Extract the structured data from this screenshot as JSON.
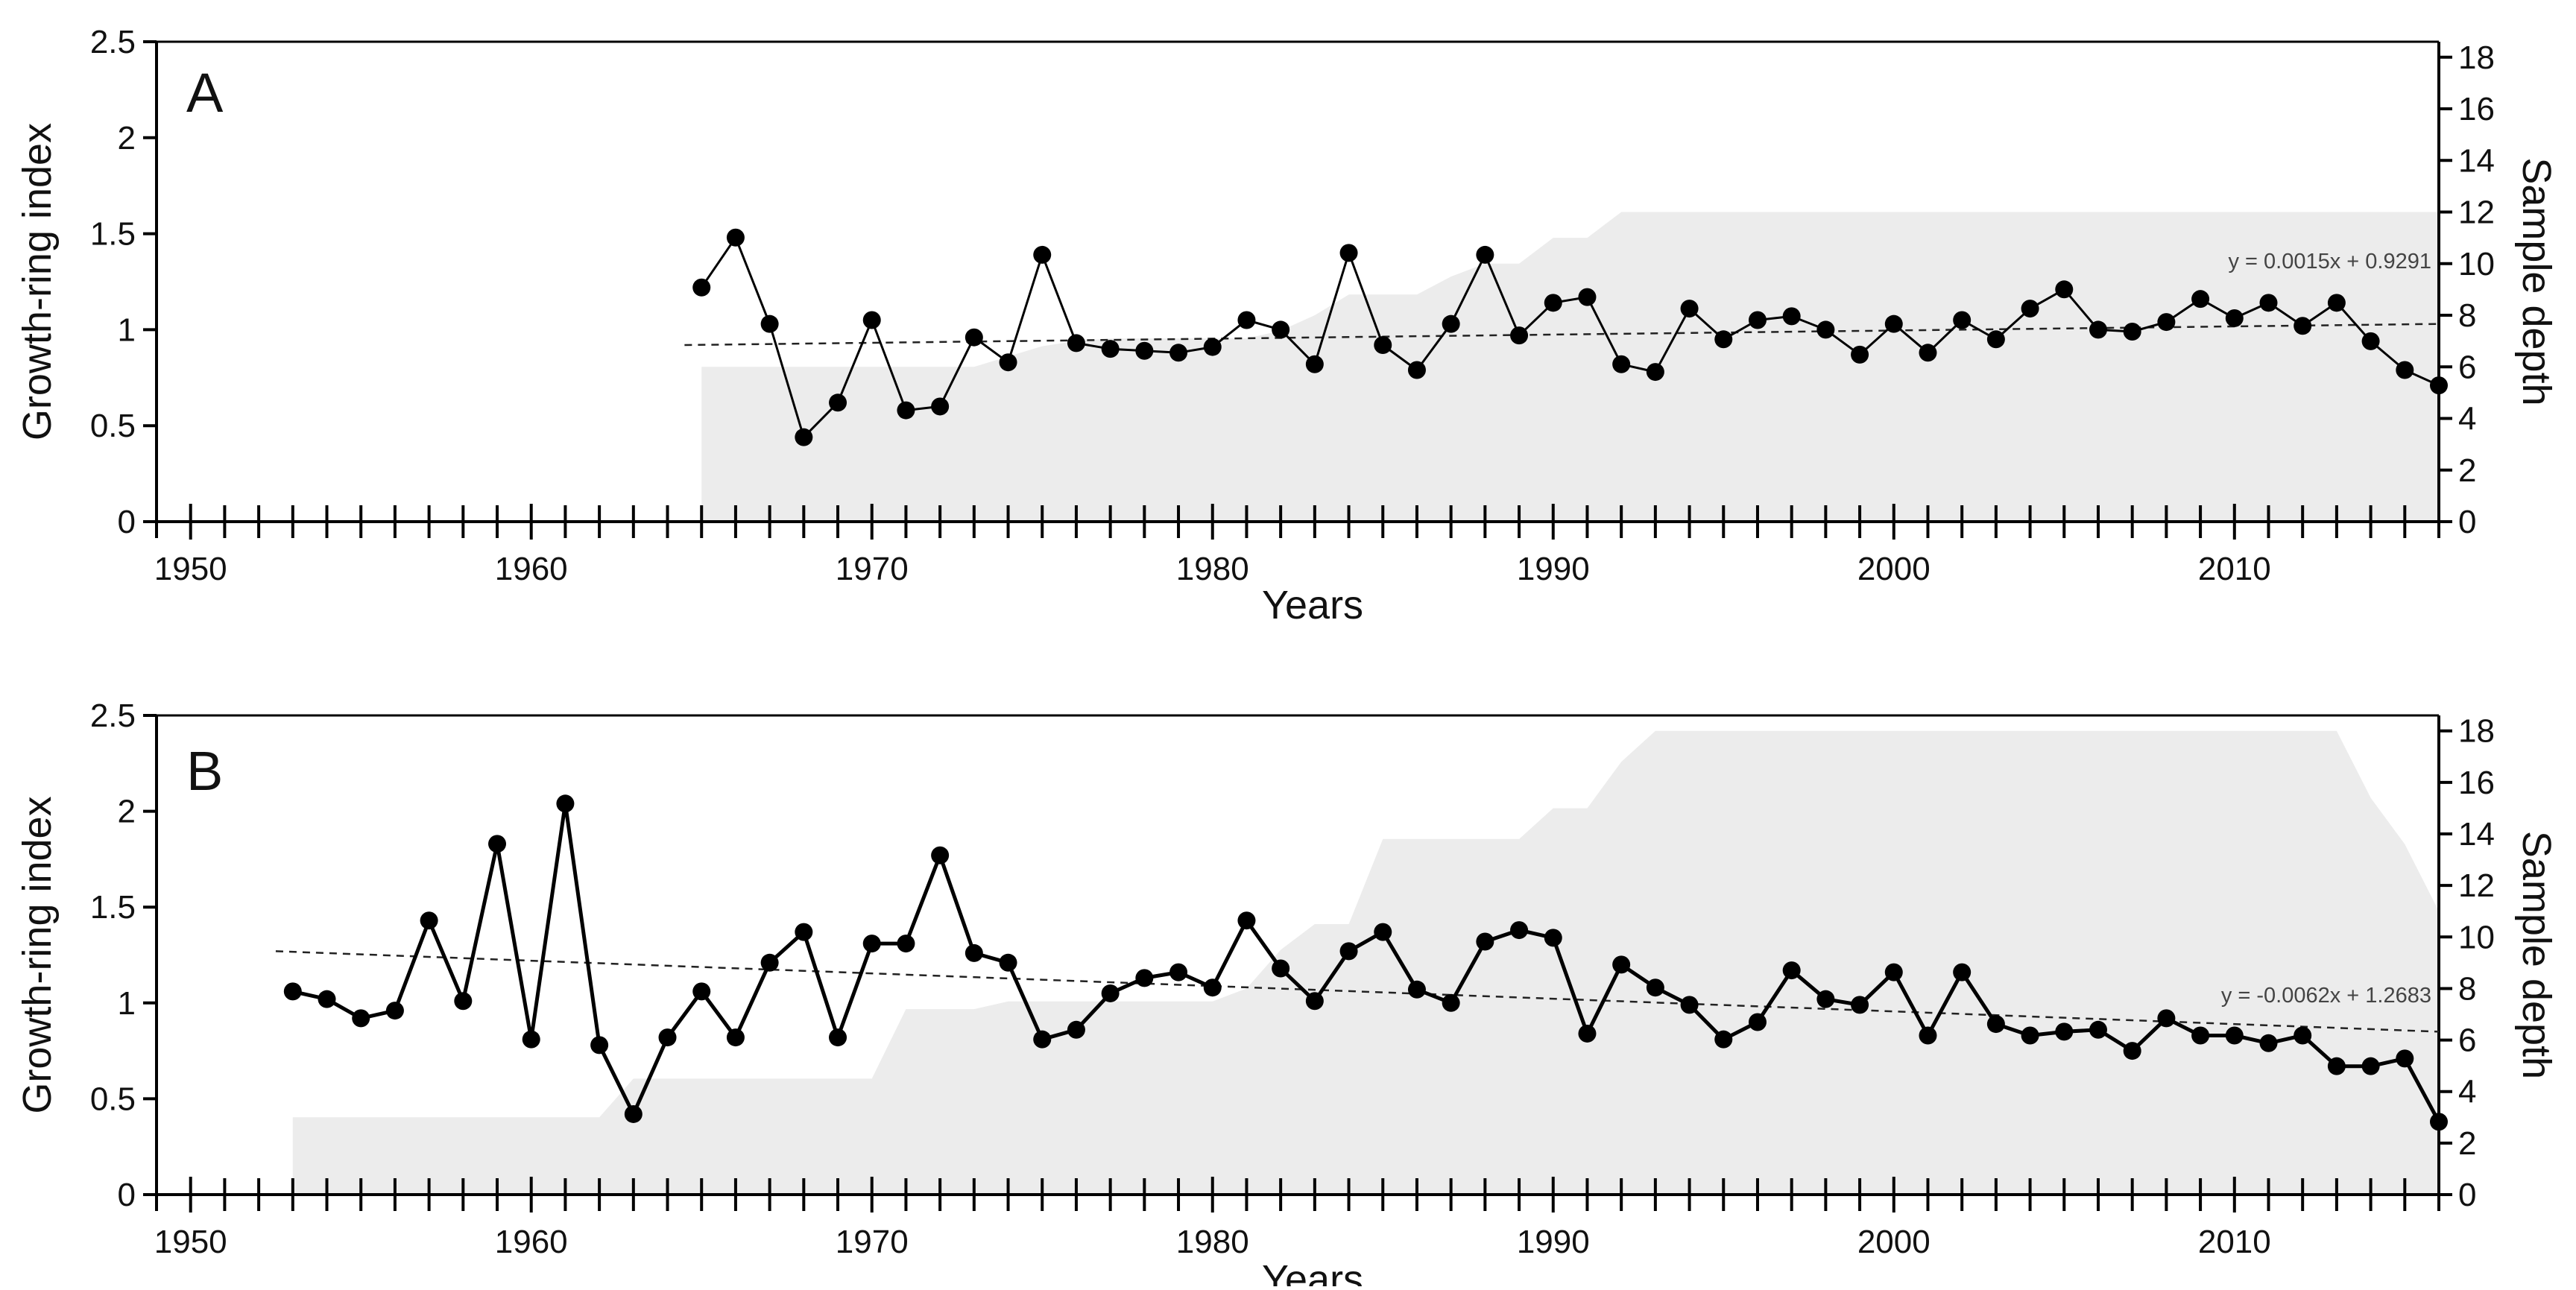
{
  "chart_data": [
    {
      "panel": "A",
      "type": "line",
      "xlabel": "Years",
      "ylabel": "Growth-ring index",
      "y2label": "Sample depth",
      "xlim": [
        1949,
        2016
      ],
      "ylim": [
        0,
        2.5
      ],
      "y2lim": [
        0,
        18.6
      ],
      "x_ticks": [
        1950,
        1960,
        1970,
        1980,
        1990,
        2000,
        2010
      ],
      "y_ticks": [
        "0",
        "0.5",
        "1",
        "1.5",
        "2",
        "2.5"
      ],
      "y2_ticks": [
        "0",
        "2",
        "4",
        "6",
        "8",
        "10",
        "12",
        "14",
        "16",
        "18"
      ],
      "trend_label": "y = 0.0015x + 0.9291",
      "trend_line": {
        "x": [
          1964.5,
          2016
        ],
        "y": [
          0.92,
          1.03
        ]
      },
      "series": [
        {
          "name": "Growth-ring index",
          "x": [
            1965,
            1966,
            1967,
            1968,
            1969,
            1970,
            1971,
            1972,
            1973,
            1974,
            1975,
            1976,
            1977,
            1978,
            1979,
            1980,
            1981,
            1982,
            1983,
            1984,
            1985,
            1986,
            1987,
            1988,
            1989,
            1990,
            1991,
            1992,
            1993,
            1994,
            1995,
            1996,
            1997,
            1998,
            1999,
            2000,
            2001,
            2002,
            2003,
            2004,
            2005,
            2006,
            2007,
            2008,
            2009,
            2010,
            2011,
            2012,
            2013,
            2014,
            2015,
            2016
          ],
          "y": [
            1.22,
            1.48,
            1.03,
            0.44,
            0.62,
            1.05,
            0.58,
            0.6,
            0.96,
            0.83,
            1.39,
            0.93,
            0.9,
            0.89,
            0.88,
            0.91,
            1.05,
            1.0,
            0.82,
            1.4,
            0.92,
            0.79,
            1.03,
            1.39,
            0.97,
            1.14,
            1.17,
            0.82,
            0.78,
            1.11,
            0.95,
            1.05,
            1.07,
            1.0,
            0.87,
            1.03,
            0.88,
            1.05,
            0.95,
            1.11,
            1.21,
            1.0,
            0.99,
            1.04,
            1.16,
            1.06,
            1.14,
            1.02,
            1.14,
            0.94,
            0.79,
            0.71
          ]
        }
      ],
      "sample_depth": {
        "x": [
          1965,
          1973,
          1974,
          1975,
          1976,
          1977,
          1978,
          1979,
          1980,
          1981,
          1982,
          1983,
          1984,
          1985,
          1986,
          1987,
          1988,
          1989,
          1990,
          1991,
          1992,
          2016
        ],
        "y": [
          6,
          6,
          6.4,
          6.8,
          7,
          7.1,
          7.1,
          7.1,
          7.1,
          7.1,
          7.4,
          8,
          8.8,
          8.8,
          8.8,
          9.5,
          10,
          10,
          11,
          11,
          12,
          12
        ]
      }
    },
    {
      "panel": "B",
      "type": "line",
      "xlabel": "Years",
      "ylabel": "Growth-ring index",
      "y2label": "Sample depth",
      "xlim": [
        1949,
        2016
      ],
      "ylim": [
        0,
        2.5
      ],
      "y2lim": [
        0,
        18.6
      ],
      "x_ticks": [
        1950,
        1960,
        1970,
        1980,
        1990,
        2000,
        2010
      ],
      "y_ticks": [
        "0",
        "0.5",
        "1",
        "1.5",
        "2",
        "2.5"
      ],
      "y2_ticks": [
        "0",
        "2",
        "4",
        "6",
        "8",
        "10",
        "12",
        "14",
        "16",
        "18"
      ],
      "trend_label": "y = -0.0062x + 1.2683",
      "trend_line": {
        "x": [
          1952.5,
          2016
        ],
        "y": [
          1.27,
          0.85
        ]
      },
      "series": [
        {
          "name": "Growth-ring index",
          "x": [
            1953,
            1954,
            1955,
            1956,
            1957,
            1958,
            1959,
            1960,
            1961,
            1962,
            1963,
            1964,
            1965,
            1966,
            1967,
            1968,
            1969,
            1970,
            1971,
            1972,
            1973,
            1974,
            1975,
            1976,
            1977,
            1978,
            1979,
            1980,
            1981,
            1982,
            1983,
            1984,
            1985,
            1986,
            1987,
            1988,
            1989,
            1990,
            1991,
            1992,
            1993,
            1994,
            1995,
            1996,
            1997,
            1998,
            1999,
            2000,
            2001,
            2002,
            2003,
            2004,
            2005,
            2006,
            2007,
            2008,
            2009,
            2010,
            2011,
            2012,
            2013,
            2014,
            2015,
            2016
          ],
          "y": [
            1.06,
            1.02,
            0.92,
            0.96,
            1.43,
            1.01,
            1.83,
            0.81,
            2.04,
            0.78,
            0.42,
            0.82,
            1.06,
            0.82,
            1.21,
            1.37,
            0.82,
            1.31,
            1.31,
            1.77,
            1.26,
            1.21,
            0.81,
            0.86,
            1.05,
            1.13,
            1.16,
            1.08,
            1.43,
            1.18,
            1.01,
            1.27,
            1.37,
            1.07,
            1.0,
            1.32,
            1.38,
            1.34,
            0.84,
            1.2,
            1.08,
            0.99,
            0.81,
            0.9,
            1.17,
            1.02,
            0.99,
            1.16,
            0.83,
            1.16,
            0.89,
            0.83,
            0.85,
            0.86,
            0.75,
            0.92,
            0.83,
            0.83,
            0.79,
            0.83,
            0.67,
            0.67,
            0.71,
            0.38
          ]
        }
      ],
      "sample_depth": {
        "x": [
          1953,
          1962,
          1963,
          1970,
          1971,
          1973,
          1974,
          1980,
          1981,
          1982,
          1983,
          1984,
          1985,
          1989,
          1990,
          1991,
          1992,
          1993,
          2013,
          2014,
          2015,
          2016
        ],
        "y": [
          3,
          3,
          4.5,
          4.5,
          7.2,
          7.2,
          7.5,
          7.5,
          8,
          9.5,
          10.5,
          10.5,
          13.8,
          13.8,
          15,
          15,
          16.8,
          18,
          18,
          15.4,
          13.6,
          11
        ]
      }
    }
  ]
}
